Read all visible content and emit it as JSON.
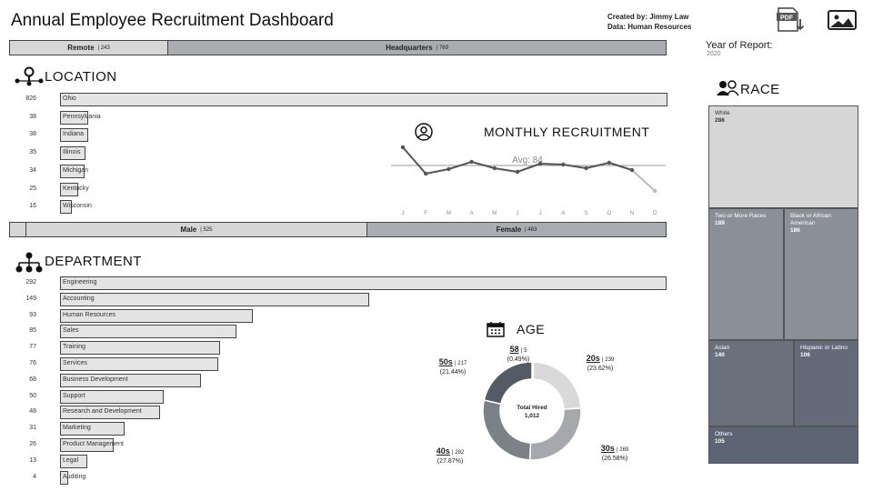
{
  "header": {
    "title": "Annual Employee Recruitment Dashboard",
    "created_by": "Created by: Jimmy Law",
    "data_source": "Data: Human Resources",
    "year_label": "Year of Report:",
    "year_value": "2020"
  },
  "toolbar": {
    "pdf_icon": "pdf-download-icon",
    "image_icon": "image-download-icon",
    "pdf_text": "PDF"
  },
  "work_location": {
    "remote_label": "Remote",
    "remote_value": "243",
    "hq_label": "Headquarters",
    "hq_value": "769",
    "separator": "|"
  },
  "gender": {
    "male_label": "Male",
    "male_value": "525",
    "female_label": "Female",
    "female_value": "463",
    "separator": "|"
  },
  "location": {
    "title": "LOCATION",
    "max": 826,
    "items": [
      {
        "label": "Ohio",
        "value": 826
      },
      {
        "label": "Pennsylvania",
        "value": 38
      },
      {
        "label": "Indiana",
        "value": 38
      },
      {
        "label": "Illinois",
        "value": 35
      },
      {
        "label": "Michigan",
        "value": 34
      },
      {
        "label": "Kentucky",
        "value": 25
      },
      {
        "label": "Wisconsin",
        "value": 16
      }
    ]
  },
  "department": {
    "title": "DEPARTMENT",
    "max": 292,
    "items": [
      {
        "label": "Engineering",
        "value": 292
      },
      {
        "label": "Accounting",
        "value": 149
      },
      {
        "label": "Human Resources",
        "value": 93
      },
      {
        "label": "Sales",
        "value": 85
      },
      {
        "label": "Training",
        "value": 77
      },
      {
        "label": "Services",
        "value": 76
      },
      {
        "label": "Business Development",
        "value": 68
      },
      {
        "label": "Support",
        "value": 50
      },
      {
        "label": "Research and Development",
        "value": 48
      },
      {
        "label": "Marketing",
        "value": 31
      },
      {
        "label": "Product Management",
        "value": 26
      },
      {
        "label": "Legal",
        "value": 13
      },
      {
        "label": "Auditing",
        "value": 4
      }
    ]
  },
  "monthly": {
    "title": "MONTHLY RECRUITMENT",
    "avg_label": "Avg: 84",
    "avg": 84,
    "months": [
      "J",
      "F",
      "M",
      "A",
      "M",
      "J",
      "J",
      "A",
      "S",
      "O",
      "N",
      "D"
    ],
    "values": [
      104,
      75,
      80,
      88,
      81,
      77,
      86,
      85,
      81,
      87,
      79,
      56
    ]
  },
  "age": {
    "title": "AGE",
    "center_label": "Total Hired",
    "center_value": "1,012",
    "segments": [
      {
        "label": "58",
        "count": "5",
        "pct": "(0.49%)",
        "value": 5,
        "color": "#3f6b3a"
      },
      {
        "label": "20s",
        "count": "239",
        "pct": "(23.62%)",
        "value": 239,
        "color": "#d9d9d9"
      },
      {
        "label": "30s",
        "count": "269",
        "pct": "(26.58%)",
        "value": 269,
        "color": "#a5a9ad"
      },
      {
        "label": "40s",
        "count": "282",
        "pct": "(27.87%)",
        "value": 282,
        "color": "#7c8187"
      },
      {
        "label": "50s",
        "count": "217",
        "pct": "(21.44%)",
        "value": 217,
        "color": "#555b64"
      }
    ]
  },
  "race": {
    "title": "RACE",
    "items": [
      {
        "label": "White",
        "value": "286"
      },
      {
        "label": "Two or More Races",
        "value": "189"
      },
      {
        "label": "Black or African American",
        "value": "186"
      },
      {
        "label": "Asian",
        "value": "140"
      },
      {
        "label": "Hispanic or Latino",
        "value": "106"
      },
      {
        "label": "Others",
        "value": "105"
      }
    ]
  }
}
